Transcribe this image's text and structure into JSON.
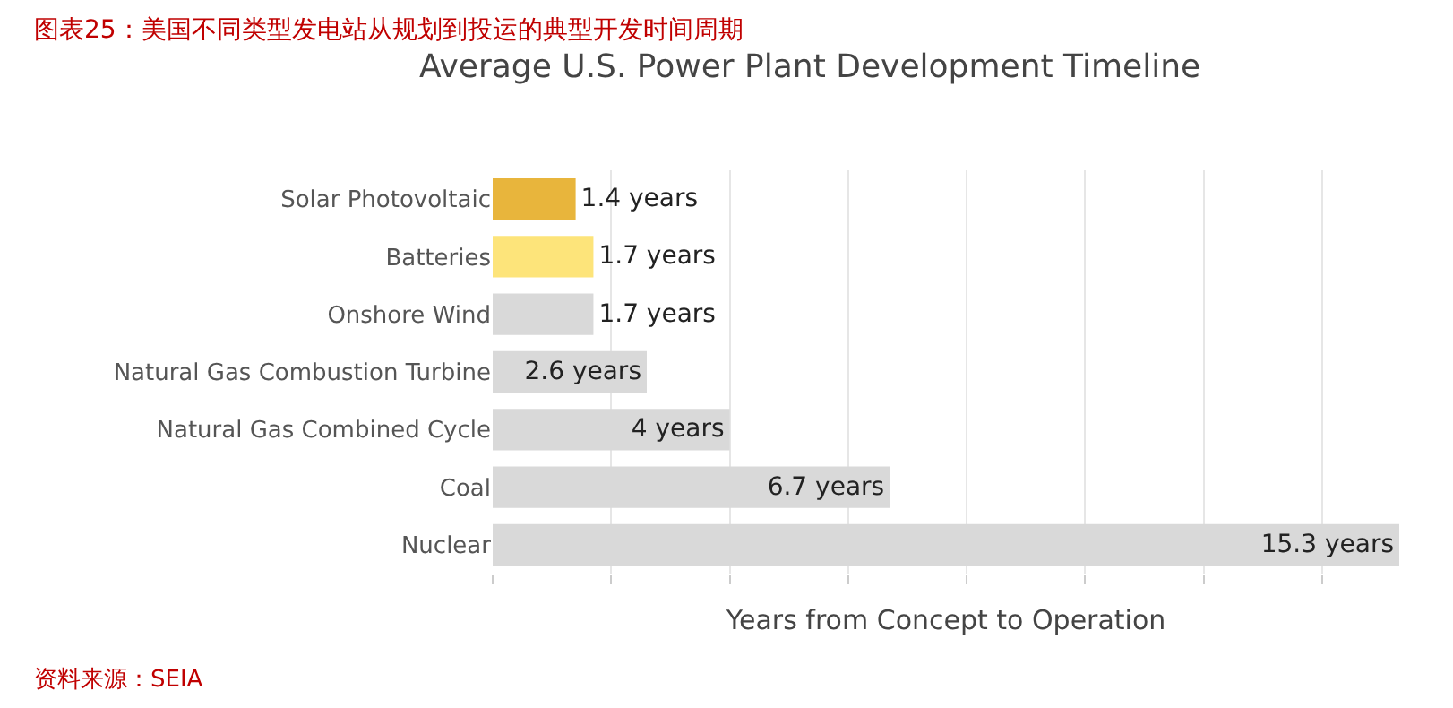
{
  "chart_data": {
    "type": "bar",
    "orientation": "horizontal",
    "title": "图表25：美国不同类型发电站从规划到投运的典型开发时间周期",
    "subtitle": "Average U.S. Power Plant Development Timeline",
    "xlabel": "Years from Concept to Operation",
    "categories": [
      "Solar Photovoltaic",
      "Batteries",
      "Onshore Wind",
      "Natural Gas Combustion Turbine",
      "Natural Gas Combined Cycle",
      "Coal",
      "Nuclear"
    ],
    "values": [
      1.4,
      1.7,
      1.7,
      2.6,
      4,
      6.7,
      15.3
    ],
    "value_labels": [
      "1.4 years",
      "1.7 years",
      "1.7 years",
      "2.6 years",
      "4 years",
      "6.7 years",
      "15.3 years"
    ],
    "colors": [
      "#e8b53c",
      "#fde47a",
      "#d9d9d9",
      "#d9d9d9",
      "#d9d9d9",
      "#d9d9d9",
      "#d9d9d9"
    ],
    "xlim": [
      0,
      15.3
    ],
    "xticks": [
      {
        "value": 0,
        "label": null
      },
      {
        "value": 2,
        "label": null
      },
      {
        "value": 4,
        "label": null
      },
      {
        "value": 6,
        "label": null
      },
      {
        "value": 8,
        "label": null
      },
      {
        "value": 10,
        "label": null
      },
      {
        "value": 12,
        "label": null
      },
      {
        "value": 14,
        "label": null
      }
    ],
    "tick_labels": "y",
    "grid": "x",
    "annotations": [
      "资料来源：SEIA"
    ]
  }
}
